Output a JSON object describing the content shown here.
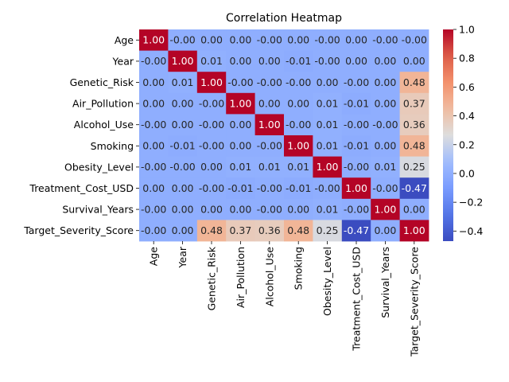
{
  "chart_data": {
    "type": "heatmap",
    "title": "Correlation Heatmap",
    "xlabel": "",
    "ylabel": "",
    "labels": [
      "Age",
      "Year",
      "Genetic_Risk",
      "Air_Pollution",
      "Alcohol_Use",
      "Smoking",
      "Obesity_Level",
      "Treatment_Cost_USD",
      "Survival_Years",
      "Target_Severity_Score"
    ],
    "display": [
      [
        "1.00",
        "-0.00",
        "0.00",
        "0.00",
        "-0.00",
        "0.00",
        "-0.00",
        "0.00",
        "-0.00",
        "-0.00"
      ],
      [
        "-0.00",
        "1.00",
        "0.01",
        "0.00",
        "0.00",
        "-0.01",
        "-0.00",
        "0.00",
        "0.00",
        "0.00"
      ],
      [
        "0.00",
        "0.01",
        "1.00",
        "-0.00",
        "-0.00",
        "-0.00",
        "0.00",
        "-0.00",
        "0.00",
        "0.48"
      ],
      [
        "0.00",
        "0.00",
        "-0.00",
        "1.00",
        "0.00",
        "0.00",
        "0.01",
        "-0.01",
        "0.00",
        "0.37"
      ],
      [
        "-0.00",
        "0.00",
        "-0.00",
        "0.00",
        "1.00",
        "-0.00",
        "0.01",
        "-0.00",
        "-0.00",
        "0.36"
      ],
      [
        "0.00",
        "-0.01",
        "-0.00",
        "0.00",
        "-0.00",
        "1.00",
        "0.01",
        "-0.01",
        "0.00",
        "0.48"
      ],
      [
        "-0.00",
        "-0.00",
        "0.00",
        "0.01",
        "0.01",
        "0.01",
        "1.00",
        "-0.00",
        "0.01",
        "0.25"
      ],
      [
        "0.00",
        "0.00",
        "-0.00",
        "-0.01",
        "-0.00",
        "-0.01",
        "-0.00",
        "1.00",
        "-0.00",
        "-0.47"
      ],
      [
        "-0.00",
        "0.00",
        "0.00",
        "0.00",
        "-0.00",
        "0.00",
        "0.01",
        "-0.00",
        "1.00",
        "0.00"
      ],
      [
        "-0.00",
        "0.00",
        "0.48",
        "0.37",
        "0.36",
        "0.48",
        "0.25",
        "-0.47",
        "0.00",
        "1.00"
      ]
    ],
    "colormap": "coolwarm",
    "color_range": [
      -0.47,
      1.0
    ],
    "colorbar_ticks": [
      "1.0",
      "0.8",
      "0.6",
      "0.4",
      "0.2",
      "0.0",
      "−0.2",
      "−0.4"
    ],
    "colorbar_tick_values": [
      1.0,
      0.8,
      0.6,
      0.4,
      0.2,
      0.0,
      -0.2,
      -0.4
    ],
    "annotations": true
  }
}
